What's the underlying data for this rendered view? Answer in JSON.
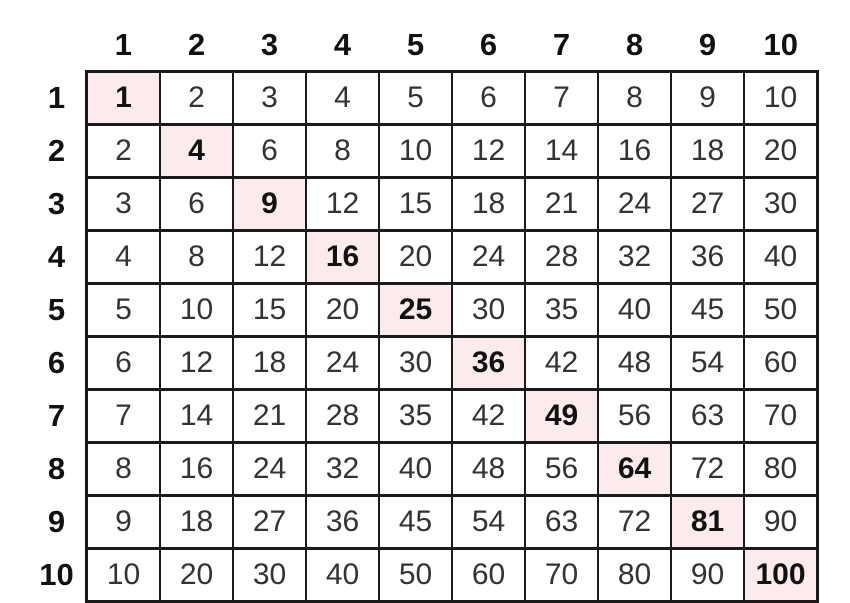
{
  "colors": {
    "highlight_bg": "#fcebec",
    "grid_border": "#1a1a1a",
    "cell_text": "#333333",
    "header_text": "#111111",
    "page_bg": "#ffffff"
  },
  "table": {
    "column_headers": [
      "1",
      "2",
      "3",
      "4",
      "5",
      "6",
      "7",
      "8",
      "9",
      "10"
    ],
    "row_headers": [
      "1",
      "2",
      "3",
      "4",
      "5",
      "6",
      "7",
      "8",
      "9",
      "10"
    ],
    "rows": [
      [
        1,
        2,
        3,
        4,
        5,
        6,
        7,
        8,
        9,
        10
      ],
      [
        2,
        4,
        6,
        8,
        10,
        12,
        14,
        16,
        18,
        20
      ],
      [
        3,
        6,
        9,
        12,
        15,
        18,
        21,
        24,
        27,
        30
      ],
      [
        4,
        8,
        12,
        16,
        20,
        24,
        28,
        32,
        36,
        40
      ],
      [
        5,
        10,
        15,
        20,
        25,
        30,
        35,
        40,
        45,
        50
      ],
      [
        6,
        12,
        18,
        24,
        30,
        36,
        42,
        48,
        54,
        60
      ],
      [
        7,
        14,
        21,
        28,
        35,
        42,
        49,
        56,
        63,
        70
      ],
      [
        8,
        16,
        24,
        32,
        40,
        48,
        56,
        64,
        72,
        80
      ],
      [
        9,
        18,
        27,
        36,
        45,
        54,
        63,
        72,
        81,
        90
      ],
      [
        10,
        20,
        30,
        40,
        50,
        60,
        70,
        80,
        90,
        100
      ]
    ],
    "highlighted_values": [
      1,
      4,
      9,
      16,
      25,
      36,
      49,
      64,
      81,
      100
    ],
    "highlight_rule": "diagonal (row index equals column index)"
  },
  "chart_data": {
    "type": "table",
    "title": "",
    "x_categories": [
      1,
      2,
      3,
      4,
      5,
      6,
      7,
      8,
      9,
      10
    ],
    "y_categories": [
      1,
      2,
      3,
      4,
      5,
      6,
      7,
      8,
      9,
      10
    ],
    "values": [
      [
        1,
        2,
        3,
        4,
        5,
        6,
        7,
        8,
        9,
        10
      ],
      [
        2,
        4,
        6,
        8,
        10,
        12,
        14,
        16,
        18,
        20
      ],
      [
        3,
        6,
        9,
        12,
        15,
        18,
        21,
        24,
        27,
        30
      ],
      [
        4,
        8,
        12,
        16,
        20,
        24,
        28,
        32,
        36,
        40
      ],
      [
        5,
        10,
        15,
        20,
        25,
        30,
        35,
        40,
        45,
        50
      ],
      [
        6,
        12,
        18,
        24,
        30,
        36,
        42,
        48,
        54,
        60
      ],
      [
        7,
        14,
        21,
        28,
        35,
        42,
        49,
        56,
        63,
        70
      ],
      [
        8,
        16,
        24,
        32,
        40,
        48,
        56,
        64,
        72,
        80
      ],
      [
        9,
        18,
        27,
        36,
        45,
        54,
        63,
        72,
        81,
        90
      ],
      [
        10,
        20,
        30,
        40,
        50,
        60,
        70,
        80,
        90,
        100
      ]
    ],
    "highlighted_diagonal": [
      1,
      4,
      9,
      16,
      25,
      36,
      49,
      64,
      81,
      100
    ],
    "notes": "10x10 multiplication table; perfect squares on the diagonal are highlighted pink and bold"
  }
}
